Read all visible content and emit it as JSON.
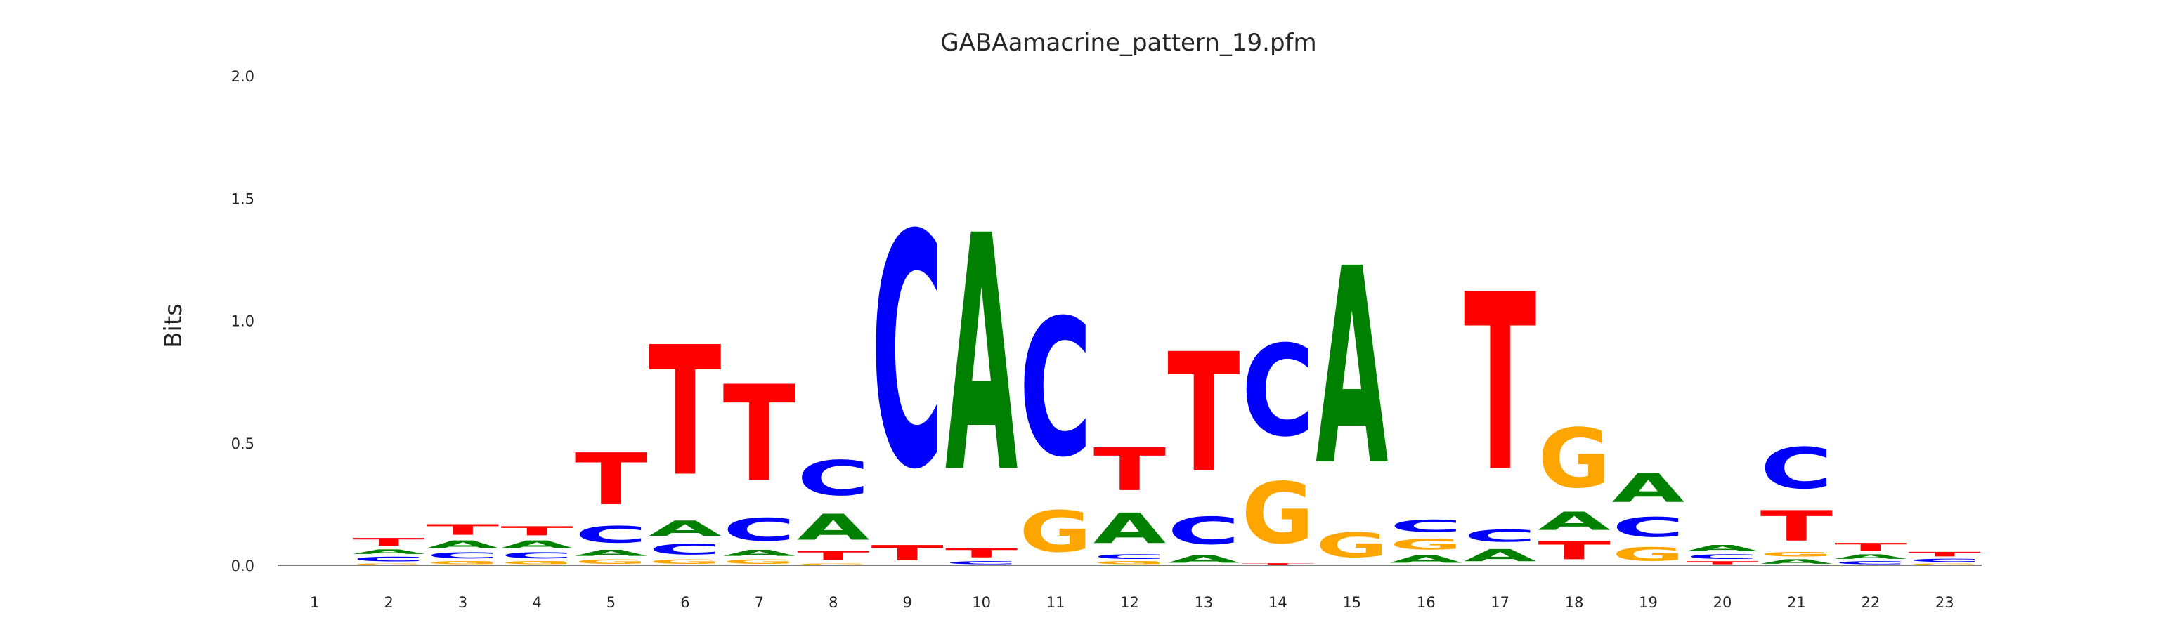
{
  "chart_data": {
    "type": "sequence-logo",
    "title": "GABAamacrine_pattern_19.pfm",
    "xlabel": "",
    "ylabel": "Bits",
    "ylim": [
      0,
      2.0
    ],
    "yticks": [
      "0.0",
      "0.5",
      "1.0",
      "1.5",
      "2.0"
    ],
    "grid": false,
    "positions": [
      "1",
      "2",
      "3",
      "4",
      "5",
      "6",
      "7",
      "8",
      "9",
      "10",
      "11",
      "12",
      "13",
      "14",
      "15",
      "16",
      "17",
      "18",
      "19",
      "20",
      "21",
      "22",
      "23"
    ],
    "colors": {
      "A": "#008000",
      "C": "#0000ff",
      "G": "#ffa500",
      "T": "#ff0000"
    },
    "columns": [
      [],
      [
        [
          "G",
          0.01
        ],
        [
          "C",
          0.03
        ],
        [
          "A",
          0.03
        ],
        [
          "T",
          0.05
        ]
      ],
      [
        [
          "G",
          0.02
        ],
        [
          "C",
          0.04
        ],
        [
          "A",
          0.05
        ],
        [
          "T",
          0.07
        ]
      ],
      [
        [
          "G",
          0.02
        ],
        [
          "C",
          0.04
        ],
        [
          "A",
          0.05
        ],
        [
          "T",
          0.06
        ]
      ],
      [
        [
          "G",
          0.03
        ],
        [
          "A",
          0.04
        ],
        [
          "C",
          0.11
        ],
        [
          "T",
          0.34
        ]
      ],
      [
        [
          "G",
          0.03
        ],
        [
          "C",
          0.07
        ],
        [
          "A",
          0.1
        ],
        [
          "T",
          0.85
        ]
      ],
      [
        [
          "G",
          0.03
        ],
        [
          "A",
          0.04
        ],
        [
          "C",
          0.15
        ],
        [
          "T",
          0.63
        ]
      ],
      [
        [
          "G",
          0.01
        ],
        [
          "T",
          0.06
        ],
        [
          "A",
          0.17
        ],
        [
          "C",
          0.23
        ]
      ],
      [
        [
          "T",
          0.1
        ],
        [
          "C",
          1.53
        ]
      ],
      [
        [
          "C",
          0.02
        ],
        [
          "T",
          0.06
        ],
        [
          "A",
          1.55
        ]
      ],
      [
        [
          "G",
          0.27
        ],
        [
          "C",
          0.9
        ]
      ],
      [
        [
          "G",
          0.02
        ],
        [
          "C",
          0.03
        ],
        [
          "A",
          0.2
        ],
        [
          "T",
          0.28
        ]
      ],
      [
        [
          "A",
          0.05
        ],
        [
          "C",
          0.18
        ],
        [
          "T",
          0.78
        ]
      ],
      [
        [
          "T",
          0.01
        ],
        [
          "G",
          0.4
        ],
        [
          "C",
          0.6
        ]
      ],
      [
        [
          "G",
          0.16
        ],
        [
          "A",
          1.29
        ]
      ],
      [
        [
          "A",
          0.05
        ],
        [
          "G",
          0.07
        ],
        [
          "C",
          0.08
        ]
      ],
      [
        [
          "A",
          0.08
        ],
        [
          "C",
          0.08
        ],
        [
          "T",
          1.16
        ]
      ],
      [
        [
          "T",
          0.12
        ],
        [
          "A",
          0.12
        ],
        [
          "G",
          0.39
        ]
      ],
      [
        [
          "G",
          0.09
        ],
        [
          "C",
          0.13
        ],
        [
          "A",
          0.19
        ]
      ],
      [
        [
          "T",
          0.02
        ],
        [
          "C",
          0.03
        ],
        [
          "A",
          0.04
        ]
      ],
      [
        [
          "A",
          0.03
        ],
        [
          "G",
          0.03
        ],
        [
          "T",
          0.2
        ],
        [
          "C",
          0.27
        ]
      ],
      [
        [
          "C",
          0.02
        ],
        [
          "A",
          0.03
        ],
        [
          "T",
          0.05
        ]
      ],
      [
        [
          "G",
          0.01
        ],
        [
          "C",
          0.02
        ],
        [
          "T",
          0.03
        ]
      ]
    ]
  }
}
